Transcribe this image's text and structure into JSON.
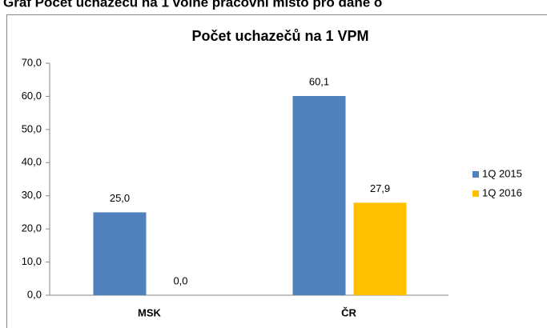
{
  "caption": "Graf Počet uchazečů na 1 volné pracovní místo pro dané o",
  "chart_data": {
    "type": "bar",
    "title": "Počet uchazečů na 1 VPM",
    "categories": [
      "MSK",
      "ČR"
    ],
    "series": [
      {
        "name": "1Q 2015",
        "color": "#4f81bd",
        "values": [
          25.0,
          60.1
        ],
        "value_labels": [
          "25,0",
          "60,1"
        ]
      },
      {
        "name": "1Q 2016",
        "color": "#ffc000",
        "values": [
          0.0,
          27.9
        ],
        "value_labels": [
          "0,0",
          "27,9"
        ]
      }
    ],
    "ylim": [
      0,
      70
    ],
    "yticks": [
      {
        "value": 0,
        "label": "0,0"
      },
      {
        "value": 10,
        "label": "10,0"
      },
      {
        "value": 20,
        "label": "20,0"
      },
      {
        "value": 30,
        "label": "30,0"
      },
      {
        "value": 40,
        "label": "40,0"
      },
      {
        "value": 50,
        "label": "50,0"
      },
      {
        "value": 60,
        "label": "60,0"
      },
      {
        "value": 70,
        "label": "70,0"
      }
    ],
    "legend": "right",
    "grid": false
  }
}
